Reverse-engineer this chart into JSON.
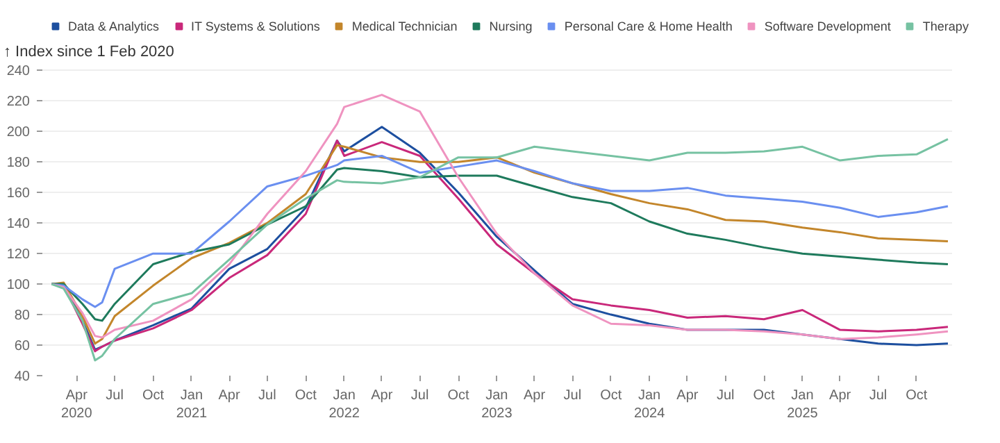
{
  "chart_data": {
    "type": "line",
    "ylabel": "↑ Index since 1 Feb 2020",
    "x": [
      "2020-02-01",
      "2020-03-01",
      "2020-04-15",
      "2020-05-15",
      "2020-06-01",
      "2020-07-01",
      "2020-10-01",
      "2021-01-01",
      "2021-04-01",
      "2021-07-01",
      "2021-10-01",
      "2021-12-15",
      "2022-01-01",
      "2022-04-01",
      "2022-07-01",
      "2022-10-01",
      "2023-01-01",
      "2023-04-01",
      "2023-07-01",
      "2023-10-01",
      "2024-01-01",
      "2024-04-01",
      "2024-07-01",
      "2024-10-01",
      "2025-01-01",
      "2025-04-01",
      "2025-07-01",
      "2025-10-01",
      "2025-12-15"
    ],
    "series": [
      {
        "name": "Data & Analytics",
        "color": "#1d4f9f",
        "values": [
          100,
          100,
          76,
          57,
          59,
          63,
          73,
          84,
          110,
          123,
          150,
          194,
          187,
          203,
          186,
          160,
          131,
          109,
          87,
          80,
          74,
          70,
          70,
          70,
          67,
          64,
          61,
          60,
          61
        ]
      },
      {
        "name": "IT Systems & Solutions",
        "color": "#c9287a",
        "values": [
          100,
          99,
          74,
          56,
          59,
          63,
          71,
          83,
          104,
          119,
          146,
          194,
          184,
          193,
          184,
          156,
          126,
          107,
          90,
          86,
          83,
          78,
          79,
          77,
          83,
          70,
          69,
          70,
          72
        ]
      },
      {
        "name": "Medical Technician",
        "color": "#c3862b",
        "values": [
          100,
          101,
          79,
          61,
          64,
          79,
          99,
          117,
          127,
          140,
          159,
          191,
          190,
          183,
          180,
          180,
          183,
          173,
          166,
          159,
          153,
          149,
          142,
          141,
          137,
          134,
          130,
          129,
          128
        ]
      },
      {
        "name": "Nursing",
        "color": "#1e7a5c",
        "values": [
          100,
          100,
          87,
          77,
          76,
          87,
          113,
          121,
          126,
          139,
          151,
          175,
          176,
          174,
          170,
          171,
          171,
          164,
          157,
          153,
          141,
          133,
          129,
          124,
          120,
          118,
          116,
          114,
          113
        ]
      },
      {
        "name": "Personal Care & Home Health",
        "color": "#6a8ff0",
        "values": [
          100,
          99,
          90,
          85,
          88,
          110,
          120,
          120,
          141,
          164,
          171,
          178,
          181,
          184,
          173,
          177,
          181,
          174,
          166,
          161,
          161,
          163,
          158,
          156,
          154,
          150,
          144,
          147,
          151
        ]
      },
      {
        "name": "Software Development",
        "color": "#ef93c0",
        "values": [
          100,
          98,
          81,
          66,
          65,
          70,
          76,
          90,
          113,
          146,
          174,
          205,
          216,
          224,
          213,
          170,
          133,
          107,
          86,
          74,
          73,
          70,
          70,
          69,
          67,
          64,
          65,
          67,
          69
        ]
      },
      {
        "name": "Therapy",
        "color": "#76c2a2",
        "values": [
          100,
          97,
          76,
          50,
          53,
          64,
          87,
          94,
          116,
          139,
          156,
          168,
          167,
          166,
          170,
          183,
          183,
          190,
          187,
          184,
          181,
          186,
          186,
          187,
          190,
          181,
          184,
          185,
          195
        ]
      }
    ],
    "xlim": [
      "2020-01-10",
      "2025-12-25"
    ],
    "xticks": [
      {
        "value": "2020-04-01",
        "label": "Apr\n2020"
      },
      {
        "value": "2020-07-01",
        "label": "Jul"
      },
      {
        "value": "2020-10-01",
        "label": "Oct"
      },
      {
        "value": "2021-01-01",
        "label": "Jan\n2021"
      },
      {
        "value": "2021-04-01",
        "label": "Apr"
      },
      {
        "value": "2021-07-01",
        "label": "Jul"
      },
      {
        "value": "2021-10-01",
        "label": "Oct"
      },
      {
        "value": "2022-01-01",
        "label": "Jan\n2022"
      },
      {
        "value": "2022-04-01",
        "label": "Apr"
      },
      {
        "value": "2022-07-01",
        "label": "Jul"
      },
      {
        "value": "2022-10-01",
        "label": "Oct"
      },
      {
        "value": "2023-01-01",
        "label": "Jan\n2023"
      },
      {
        "value": "2023-04-01",
        "label": "Apr"
      },
      {
        "value": "2023-07-01",
        "label": "Jul"
      },
      {
        "value": "2023-10-01",
        "label": "Oct"
      },
      {
        "value": "2024-01-01",
        "label": "Jan\n2024"
      },
      {
        "value": "2024-04-01",
        "label": "Apr"
      },
      {
        "value": "2024-07-01",
        "label": "Jul"
      },
      {
        "value": "2024-10-01",
        "label": "Oct"
      },
      {
        "value": "2025-01-01",
        "label": "Jan\n2025"
      },
      {
        "value": "2025-04-01",
        "label": "Apr"
      },
      {
        "value": "2025-07-01",
        "label": "Jul"
      },
      {
        "value": "2025-10-01",
        "label": "Oct"
      }
    ],
    "ylim": [
      40,
      242
    ],
    "yticks": [
      40,
      60,
      80,
      100,
      120,
      140,
      160,
      180,
      200,
      220,
      240
    ],
    "grid": "y",
    "legend": "top",
    "line_style": "solid"
  }
}
